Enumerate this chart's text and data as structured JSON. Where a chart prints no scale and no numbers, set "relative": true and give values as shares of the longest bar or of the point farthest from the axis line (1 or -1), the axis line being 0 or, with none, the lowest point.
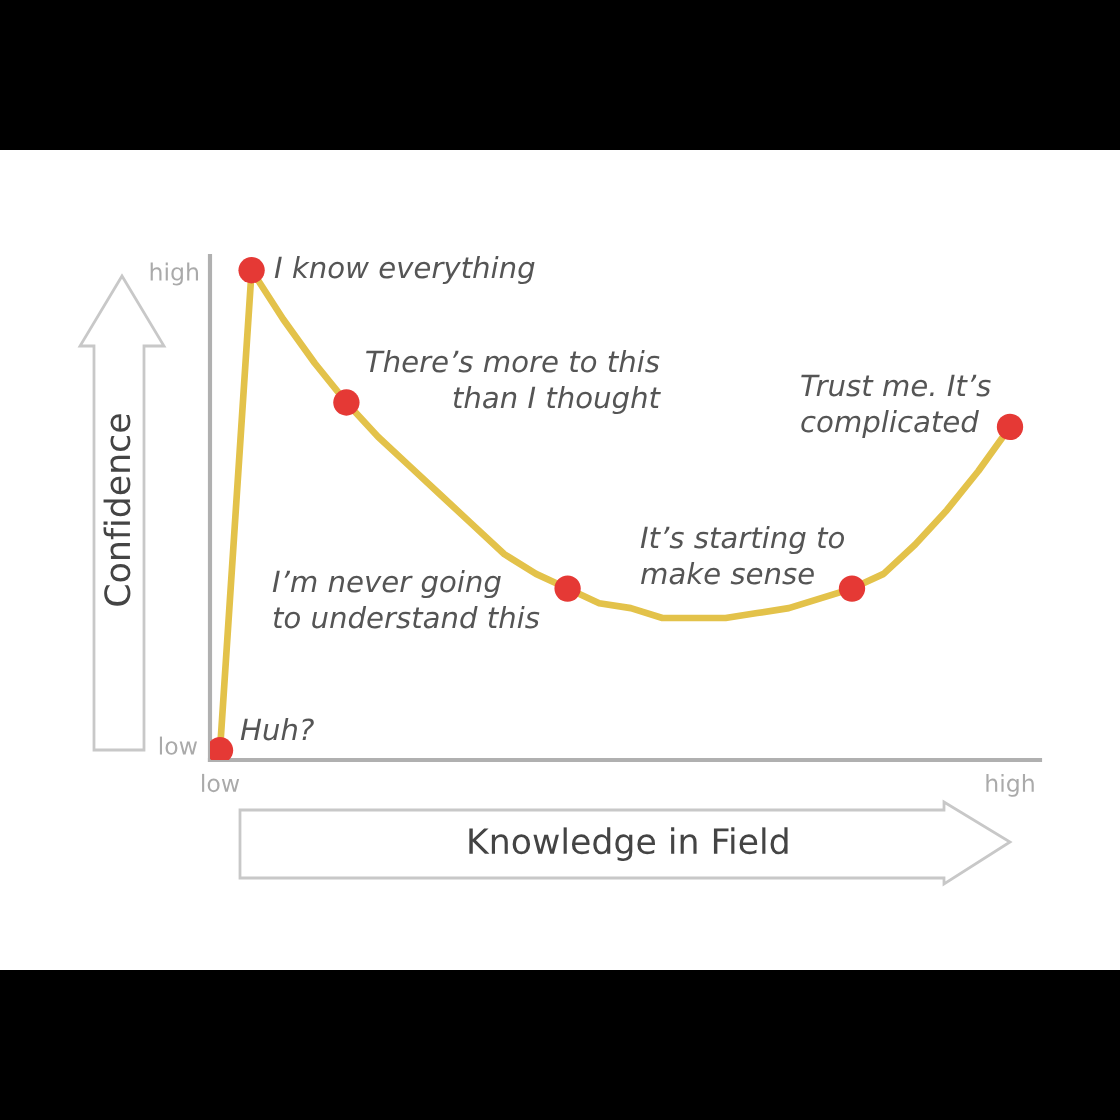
{
  "chart_data": {
    "type": "line",
    "relative": true,
    "xlabel": "Knowledge in Field",
    "ylabel": "Confidence",
    "categories": [
      "low",
      null,
      null,
      null,
      null,
      null,
      null,
      null,
      null,
      null,
      null,
      null,
      null,
      null,
      null,
      null,
      null,
      null,
      null,
      null,
      null,
      null,
      null,
      null,
      null,
      "high"
    ],
    "series": [
      {
        "color": "#e3c24a",
        "line_style": "solid",
        "marker": "none",
        "values": [
          0.02,
          1.0,
          0.9,
          0.81,
          0.73,
          0.66,
          0.6,
          0.54,
          0.48,
          0.42,
          0.38,
          0.35,
          0.32,
          0.31,
          0.29,
          0.29,
          0.29,
          0.3,
          0.31,
          0.33,
          0.35,
          0.38,
          0.44,
          0.51,
          0.59,
          0.68
        ]
      },
      {
        "type": "scatter",
        "color": "#e53935",
        "marker": "circle",
        "values": [
          0.02,
          1.0,
          null,
          null,
          0.73,
          null,
          null,
          null,
          null,
          null,
          null,
          0.35,
          null,
          null,
          null,
          null,
          null,
          null,
          null,
          null,
          0.35,
          null,
          null,
          null,
          null,
          0.68
        ]
      }
    ],
    "annotations": [
      "Huh?",
      "I know everything",
      "There’s more to this\nthan I thought",
      "I’m never going\nto understand this",
      "It’s starting to\nmake sense",
      "Trust me. It’s\ncomplicated",
      "high",
      "low"
    ]
  }
}
